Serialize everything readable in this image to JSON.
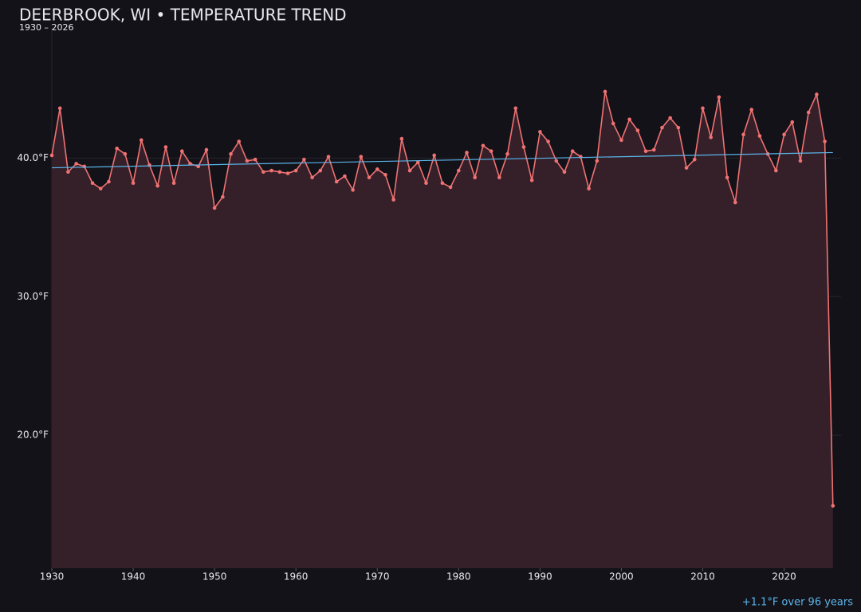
{
  "chart_data": {
    "type": "line",
    "title": "DEERBROOK, WI • TEMPERATURE TREND",
    "subtitle": "1930 – 2026",
    "annotation": "+1.1°F over 96 years",
    "x": [
      1930,
      1931,
      1932,
      1933,
      1934,
      1935,
      1936,
      1937,
      1938,
      1939,
      1940,
      1941,
      1942,
      1943,
      1944,
      1945,
      1946,
      1947,
      1948,
      1949,
      1950,
      1951,
      1952,
      1953,
      1954,
      1955,
      1956,
      1957,
      1958,
      1959,
      1960,
      1961,
      1962,
      1963,
      1964,
      1965,
      1966,
      1967,
      1968,
      1969,
      1970,
      1971,
      1972,
      1973,
      1974,
      1975,
      1976,
      1977,
      1978,
      1979,
      1980,
      1981,
      1982,
      1983,
      1984,
      1985,
      1986,
      1987,
      1988,
      1989,
      1990,
      1991,
      1992,
      1993,
      1994,
      1995,
      1996,
      1997,
      1998,
      1999,
      2000,
      2001,
      2002,
      2003,
      2004,
      2005,
      2006,
      2007,
      2008,
      2009,
      2010,
      2011,
      2012,
      2013,
      2014,
      2015,
      2016,
      2017,
      2018,
      2019,
      2020,
      2021,
      2022,
      2023,
      2024,
      2025,
      2026
    ],
    "series": [
      {
        "color": "#f07272",
        "values": [
          40.2,
          43.6,
          39.0,
          39.6,
          39.4,
          38.2,
          37.8,
          38.3,
          40.7,
          40.3,
          38.2,
          41.3,
          39.5,
          38.0,
          40.8,
          38.2,
          40.5,
          39.6,
          39.4,
          40.6,
          36.4,
          37.2,
          40.3,
          41.2,
          39.8,
          39.9,
          39.0,
          39.1,
          39.0,
          38.9,
          39.1,
          39.9,
          38.6,
          39.1,
          40.1,
          38.3,
          38.7,
          37.7,
          40.1,
          38.6,
          39.2,
          38.8,
          37.0,
          41.4,
          39.1,
          39.7,
          38.2,
          40.2,
          38.2,
          37.9,
          39.1,
          40.4,
          38.6,
          40.9,
          40.5,
          38.6,
          40.3,
          43.6,
          40.8,
          38.4,
          41.9,
          41.2,
          39.8,
          39.0,
          40.5,
          40.1,
          37.8,
          39.8,
          44.8,
          42.5,
          41.3,
          42.8,
          42.0,
          40.5,
          40.6,
          42.2,
          42.9,
          42.2,
          39.3,
          39.9,
          43.6,
          41.5,
          44.4,
          38.6,
          36.8,
          41.7,
          43.5,
          41.6,
          40.3,
          39.1,
          41.7,
          42.6,
          39.8,
          43.3,
          44.6,
          41.2,
          14.9
        ]
      }
    ],
    "trend": {
      "color": "#5ab4e8",
      "x": [
        1930,
        2026
      ],
      "values": [
        39.3,
        40.4
      ]
    },
    "area_color": "#35202a",
    "xlim": [
      1930,
      2027
    ],
    "xticks": [
      1930,
      1940,
      1950,
      1960,
      1970,
      1980,
      1990,
      2000,
      2010,
      2020
    ],
    "ylim": [
      10.4,
      49.4
    ],
    "yticks": [
      {
        "value": 20,
        "label": "20.0°F"
      },
      {
        "value": 30,
        "label": "30.0°F"
      },
      {
        "value": 40,
        "label": "40.0°F"
      }
    ],
    "grid": true
  }
}
